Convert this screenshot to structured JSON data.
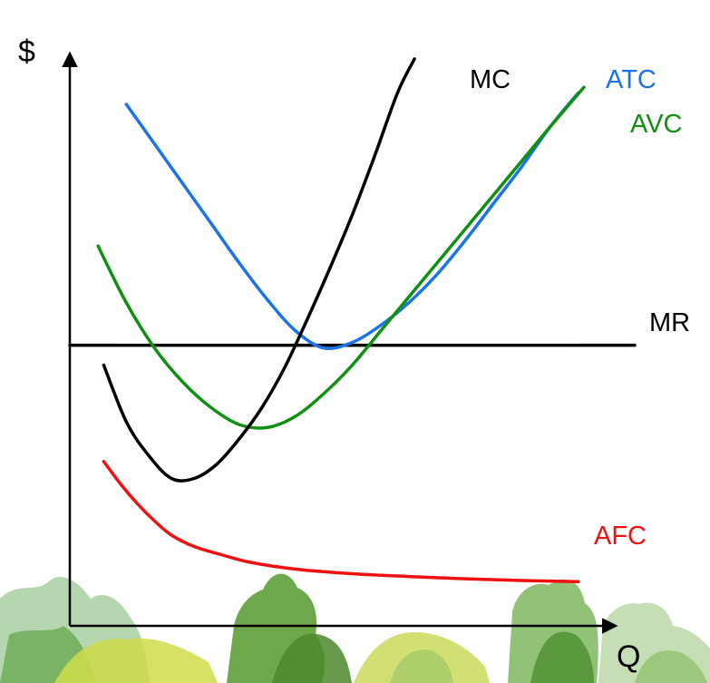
{
  "chart_data": {
    "type": "line",
    "title": "",
    "xlabel": "Q",
    "ylabel": "$",
    "xlim": [
      0,
      100
    ],
    "ylim": [
      0,
      100
    ],
    "grid": false,
    "legend": "none",
    "series": [
      {
        "name": "MC",
        "color": "#000000",
        "points": [
          [
            6,
            46
          ],
          [
            10,
            36
          ],
          [
            14,
            30
          ],
          [
            18,
            26
          ],
          [
            22,
            26
          ],
          [
            26,
            28.5
          ],
          [
            30,
            33
          ],
          [
            34,
            38.5
          ],
          [
            38,
            45.5
          ],
          [
            42,
            54
          ],
          [
            46,
            63
          ],
          [
            50,
            72.5
          ],
          [
            54,
            83
          ],
          [
            58,
            94
          ],
          [
            61,
            100
          ]
        ]
      },
      {
        "name": "ATC",
        "color": "#1a73e8",
        "points": [
          [
            10,
            92
          ],
          [
            15,
            85
          ],
          [
            20,
            78
          ],
          [
            25,
            71
          ],
          [
            30,
            64
          ],
          [
            35,
            57.5
          ],
          [
            40,
            52
          ],
          [
            45,
            49
          ],
          [
            50,
            50
          ],
          [
            55,
            53
          ],
          [
            60,
            57
          ],
          [
            65,
            62
          ],
          [
            70,
            68
          ],
          [
            75,
            74.5
          ],
          [
            80,
            81
          ],
          [
            85,
            88
          ],
          [
            90,
            94
          ]
        ]
      },
      {
        "name": "AVC",
        "color": "#109010",
        "points": [
          [
            5,
            67
          ],
          [
            10,
            57
          ],
          [
            15,
            49
          ],
          [
            20,
            43
          ],
          [
            25,
            38.5
          ],
          [
            30,
            35.5
          ],
          [
            35,
            35
          ],
          [
            40,
            37
          ],
          [
            45,
            41
          ],
          [
            50,
            46
          ],
          [
            55,
            52
          ],
          [
            60,
            58
          ],
          [
            65,
            64
          ],
          [
            70,
            70
          ],
          [
            75,
            76
          ],
          [
            80,
            82
          ],
          [
            85,
            88
          ],
          [
            91,
            95
          ]
        ]
      },
      {
        "name": "MR",
        "color": "#000000",
        "points": [
          [
            0,
            49.5
          ],
          [
            100,
            49.5
          ]
        ]
      },
      {
        "name": "AFC",
        "color": "#ee1111",
        "points": [
          [
            6,
            29
          ],
          [
            9,
            25
          ],
          [
            12,
            21.5
          ],
          [
            15,
            18.5
          ],
          [
            18,
            16
          ],
          [
            22,
            14
          ],
          [
            27,
            12.5
          ],
          [
            32,
            11.2
          ],
          [
            40,
            10
          ],
          [
            50,
            9.2
          ],
          [
            60,
            8.7
          ],
          [
            70,
            8.3
          ],
          [
            80,
            8
          ],
          [
            90,
            7.8
          ]
        ]
      }
    ],
    "colors": {
      "mc": "#000000",
      "atc": "#1a73e8",
      "avc": "#109010",
      "mr": "#000000",
      "afc": "#ee1111"
    }
  }
}
